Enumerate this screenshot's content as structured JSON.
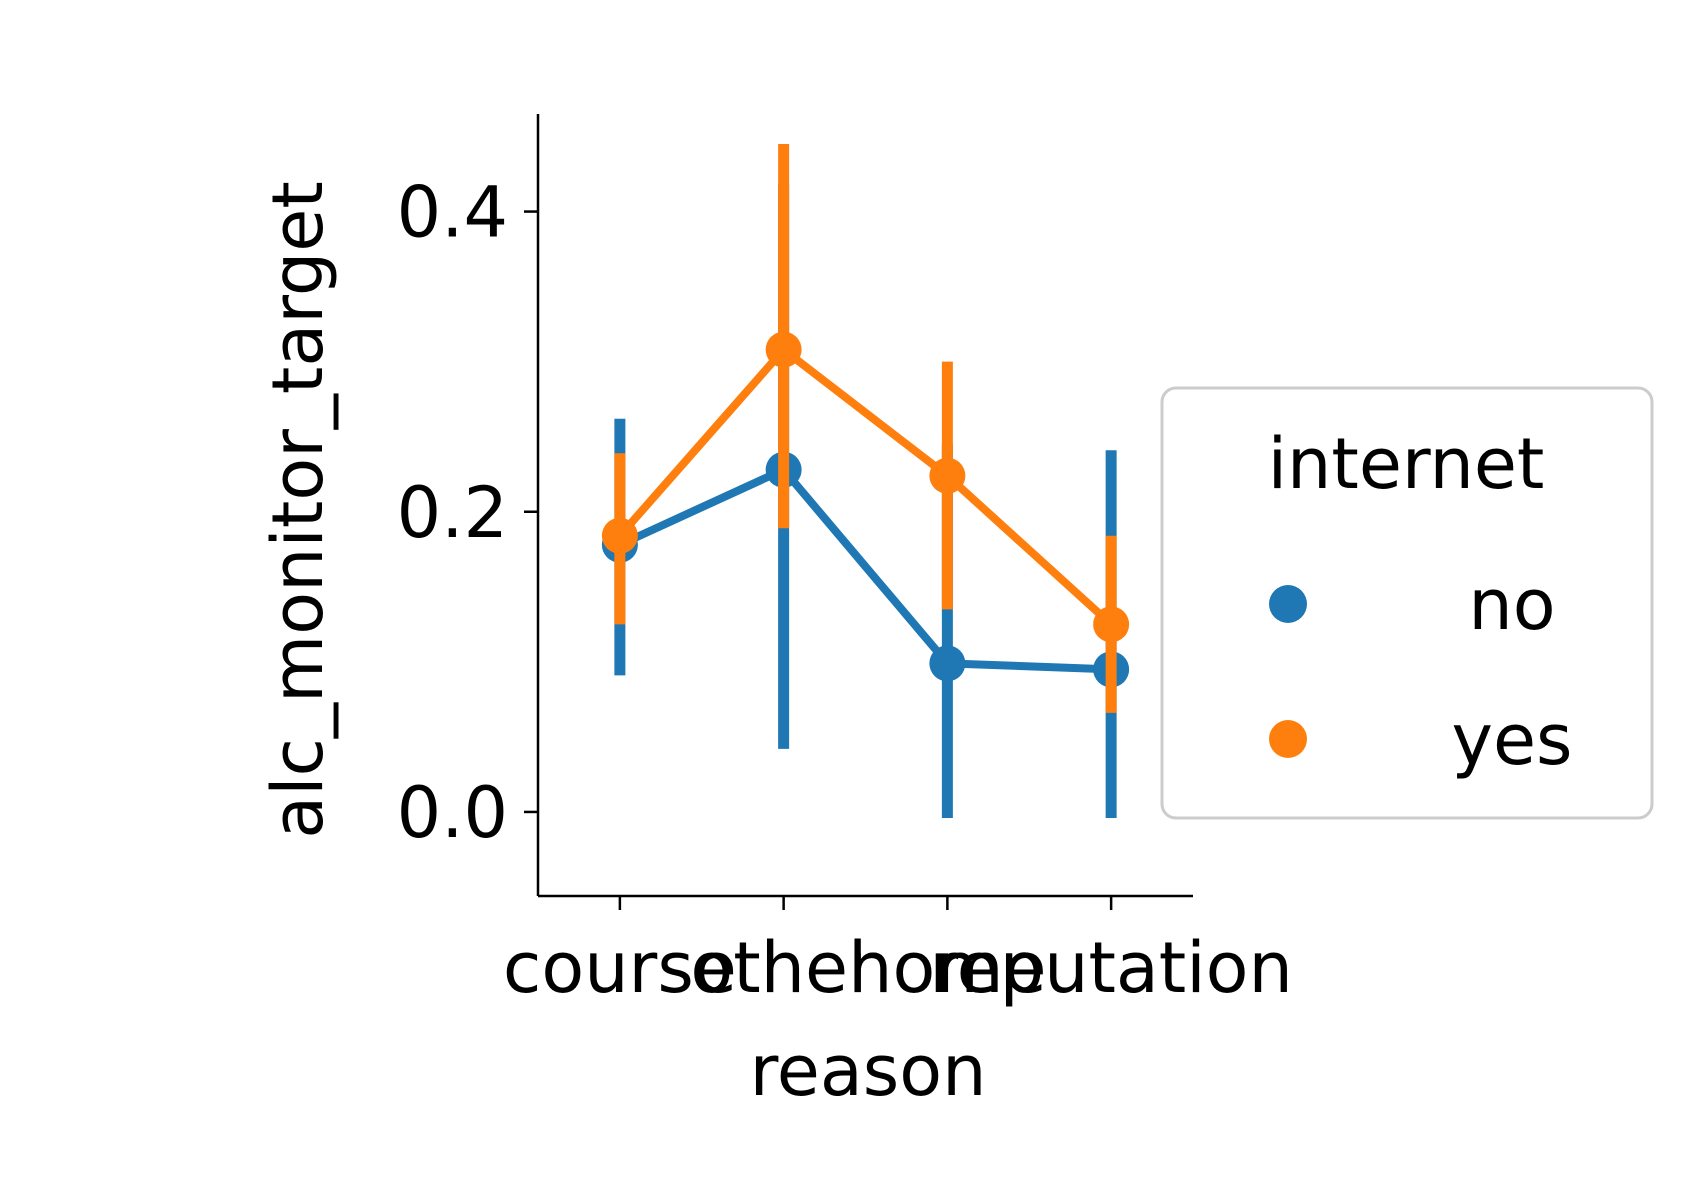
{
  "chart_data": {
    "type": "line",
    "xlabel": "reason",
    "ylabel": "alc_monitor_target",
    "categories": [
      "course",
      "other",
      "home",
      "reputation"
    ],
    "ylim": [
      -0.056,
      0.465
    ],
    "yticks": [
      {
        "value": 0.0,
        "label": "0.0"
      },
      {
        "value": 0.2,
        "label": "0.2"
      },
      {
        "value": 0.4,
        "label": "0.4"
      }
    ],
    "legend": {
      "title": "internet",
      "placement": "center-right"
    },
    "series": [
      {
        "name": "no",
        "color": "#1f77b4",
        "values": [
          0.178,
          0.228,
          0.099,
          0.095
        ],
        "ci_low": [
          0.091,
          0.042,
          -0.004,
          -0.004
        ],
        "ci_high": [
          0.262,
          0.418,
          0.245,
          0.241
        ]
      },
      {
        "name": "yes",
        "color": "#ff7f0e",
        "values": [
          0.184,
          0.308,
          0.224,
          0.125
        ],
        "ci_low": [
          0.125,
          0.189,
          0.135,
          0.066
        ],
        "ci_high": [
          0.239,
          0.445,
          0.3,
          0.184
        ]
      }
    ]
  }
}
